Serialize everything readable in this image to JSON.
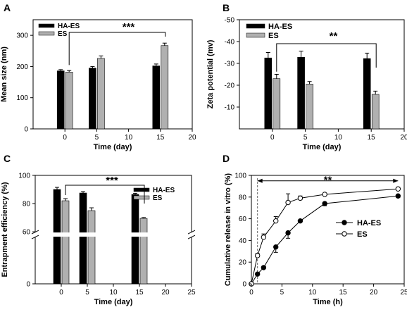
{
  "chart_data": [
    {
      "panel": "A",
      "type": "bar",
      "xlabel": "Time (day)",
      "ylabel": "Mean size (nm)",
      "xlim": [
        -5,
        20
      ],
      "ylim": [
        0,
        350
      ],
      "x_ticks": [
        0,
        5,
        10,
        15,
        20
      ],
      "y_ticks": [
        0,
        100,
        200,
        300
      ],
      "x": [
        0,
        5,
        15
      ],
      "series": [
        {
          "name": "HA-ES",
          "color": "#000000",
          "values": [
            186,
            195,
            202
          ],
          "errors": [
            4,
            5,
            6
          ]
        },
        {
          "name": "ES",
          "color": "#b0b0b0",
          "values": [
            182,
            226,
            267
          ],
          "errors": [
            5,
            8,
            8
          ]
        }
      ],
      "significance": {
        "label": "***",
        "from_x": 0,
        "to_x": 15
      },
      "legend": "top-left"
    },
    {
      "panel": "B",
      "type": "bar",
      "xlabel": "Time (day)",
      "ylabel": "Zeta potential (mv)",
      "xlim": [
        -5,
        20
      ],
      "ylim": [
        0,
        -50
      ],
      "x_ticks": [
        0,
        5,
        10,
        15,
        20
      ],
      "y_ticks": [
        -10,
        -20,
        -30,
        -40,
        -50
      ],
      "x": [
        0,
        5,
        15
      ],
      "series": [
        {
          "name": "HA-ES",
          "color": "#000000",
          "values": [
            -32.5,
            -32.8,
            -32.2
          ],
          "errors": [
            2.5,
            2.8,
            2.5
          ]
        },
        {
          "name": "ES",
          "color": "#b0b0b0",
          "values": [
            -23.0,
            -20.5,
            -15.8
          ],
          "errors": [
            2.0,
            1.2,
            1.5
          ]
        }
      ],
      "significance": {
        "label": "**",
        "from_x": 0,
        "to_x": 15
      },
      "legend": "top-left"
    },
    {
      "panel": "C",
      "type": "bar",
      "xlabel": "Time (day)",
      "ylabel": "Entrapment efficiency (%)",
      "xlim": [
        -5,
        25
      ],
      "ylim": [
        0,
        100
      ],
      "axis_break": true,
      "x_ticks": [
        0,
        5,
        10,
        15,
        20,
        25
      ],
      "y_ticks": [
        0,
        60,
        80,
        100
      ],
      "x": [
        0,
        5,
        15
      ],
      "series": [
        {
          "name": "HA-ES",
          "color": "#000000",
          "values": [
            90,
            87.5,
            86.5
          ],
          "errors": [
            1.5,
            1.0,
            0.8
          ]
        },
        {
          "name": "ES",
          "color": "#b0b0b0",
          "values": [
            82,
            75,
            69.5
          ],
          "errors": [
            1.5,
            2.0,
            0.6
          ]
        }
      ],
      "significance": {
        "label": "***",
        "from_x": 0,
        "to_x": 15
      },
      "legend": "right"
    },
    {
      "panel": "D",
      "type": "line",
      "xlabel": "Time (h)",
      "ylabel": "Cumulative release in vitro (%)",
      "xlim": [
        0,
        25
      ],
      "ylim": [
        0,
        100
      ],
      "x_ticks": [
        0,
        5,
        10,
        15,
        20,
        25
      ],
      "y_ticks": [
        0,
        20,
        40,
        60,
        80,
        100
      ],
      "series": [
        {
          "name": "HA-ES",
          "marker": "filled-circle",
          "x": [
            0,
            1,
            2,
            4,
            6,
            8,
            12,
            24
          ],
          "y": [
            0,
            9,
            15,
            34,
            47,
            58,
            74,
            81
          ],
          "errors": [
            0,
            1,
            1,
            5,
            5,
            1,
            2,
            1.5
          ]
        },
        {
          "name": "ES",
          "marker": "open-circle",
          "x": [
            0,
            1,
            2,
            4,
            6,
            8,
            12,
            24
          ],
          "y": [
            0,
            26,
            43,
            58,
            75,
            79,
            82.5,
            87.5
          ],
          "errors": [
            0,
            2,
            3,
            4,
            8,
            2,
            1,
            1.5
          ]
        }
      ],
      "significance": {
        "label": "**",
        "from_x": 1,
        "to_x": 24
      },
      "reference_line_x": 1,
      "legend": "right"
    }
  ]
}
